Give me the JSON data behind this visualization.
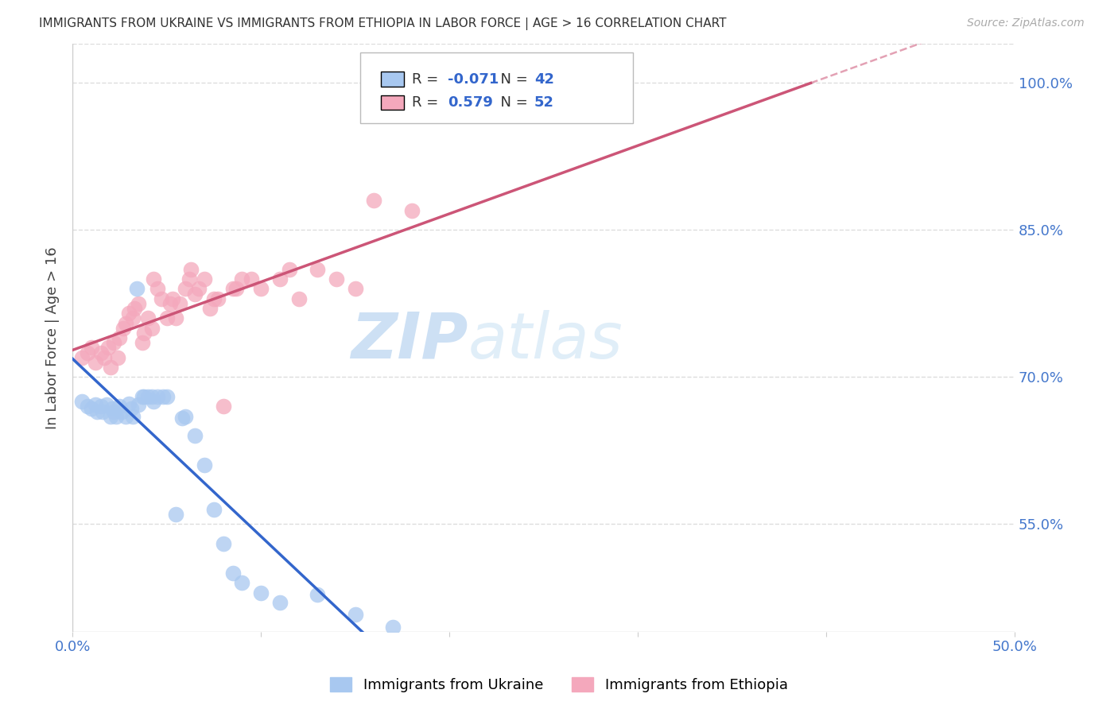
{
  "title": "IMMIGRANTS FROM UKRAINE VS IMMIGRANTS FROM ETHIOPIA IN LABOR FORCE | AGE > 16 CORRELATION CHART",
  "source": "Source: ZipAtlas.com",
  "ylabel": "In Labor Force | Age > 16",
  "xlim": [
    0.0,
    0.5
  ],
  "ylim": [
    0.44,
    1.04
  ],
  "ytick_labels_right": [
    "100.0%",
    "85.0%",
    "70.0%",
    "55.0%"
  ],
  "ytick_values_right": [
    1.0,
    0.85,
    0.7,
    0.55
  ],
  "ukraine_R": -0.071,
  "ukraine_N": 42,
  "ethiopia_R": 0.579,
  "ethiopia_N": 52,
  "ukraine_color": "#a8c8f0",
  "ethiopia_color": "#f4a8bc",
  "ukraine_line_color": "#3366cc",
  "ethiopia_line_color": "#cc5577",
  "ukraine_scatter_x": [
    0.005,
    0.008,
    0.01,
    0.012,
    0.013,
    0.015,
    0.016,
    0.018,
    0.02,
    0.021,
    0.022,
    0.023,
    0.025,
    0.026,
    0.028,
    0.03,
    0.031,
    0.032,
    0.034,
    0.035,
    0.037,
    0.038,
    0.04,
    0.042,
    0.043,
    0.045,
    0.048,
    0.05,
    0.055,
    0.058,
    0.06,
    0.065,
    0.07,
    0.075,
    0.08,
    0.085,
    0.09,
    0.1,
    0.11,
    0.13,
    0.15,
    0.17
  ],
  "ukraine_scatter_y": [
    0.675,
    0.67,
    0.668,
    0.672,
    0.665,
    0.67,
    0.665,
    0.672,
    0.66,
    0.668,
    0.665,
    0.66,
    0.67,
    0.665,
    0.66,
    0.673,
    0.668,
    0.66,
    0.79,
    0.672,
    0.68,
    0.68,
    0.68,
    0.68,
    0.675,
    0.68,
    0.68,
    0.68,
    0.56,
    0.658,
    0.66,
    0.64,
    0.61,
    0.565,
    0.53,
    0.5,
    0.49,
    0.48,
    0.47,
    0.478,
    0.458,
    0.445
  ],
  "ethiopia_scatter_x": [
    0.005,
    0.008,
    0.01,
    0.012,
    0.015,
    0.017,
    0.019,
    0.02,
    0.022,
    0.024,
    0.025,
    0.027,
    0.028,
    0.03,
    0.032,
    0.033,
    0.035,
    0.037,
    0.038,
    0.04,
    0.042,
    0.043,
    0.045,
    0.047,
    0.05,
    0.052,
    0.053,
    0.055,
    0.057,
    0.06,
    0.062,
    0.063,
    0.065,
    0.067,
    0.07,
    0.073,
    0.075,
    0.077,
    0.08,
    0.085,
    0.087,
    0.09,
    0.095,
    0.1,
    0.11,
    0.115,
    0.12,
    0.13,
    0.14,
    0.15,
    0.16,
    0.18
  ],
  "ethiopia_scatter_y": [
    0.72,
    0.725,
    0.73,
    0.715,
    0.725,
    0.72,
    0.73,
    0.71,
    0.735,
    0.72,
    0.74,
    0.75,
    0.755,
    0.765,
    0.76,
    0.77,
    0.775,
    0.735,
    0.745,
    0.76,
    0.75,
    0.8,
    0.79,
    0.78,
    0.76,
    0.775,
    0.78,
    0.76,
    0.775,
    0.79,
    0.8,
    0.81,
    0.785,
    0.79,
    0.8,
    0.77,
    0.78,
    0.78,
    0.67,
    0.79,
    0.79,
    0.8,
    0.8,
    0.79,
    0.8,
    0.81,
    0.78,
    0.81,
    0.8,
    0.79,
    0.88,
    0.87
  ],
  "watermark_zip": "ZIP",
  "watermark_atlas": "atlas",
  "legend_ukraine_label": "Immigrants from Ukraine",
  "legend_ethiopia_label": "Immigrants from Ethiopia",
  "background_color": "#ffffff",
  "grid_color": "#dddddd",
  "legend_R_color": "#3366cc",
  "legend_N_color": "#3366cc"
}
